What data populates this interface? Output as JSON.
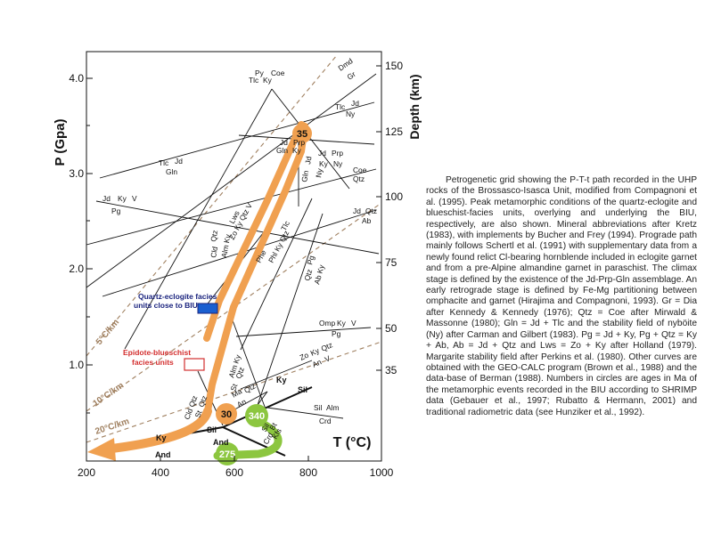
{
  "figure": {
    "type": "P-T phase diagram (petrogenetic grid)",
    "y_axis_label": "P (Gpa)",
    "y_ticks": [
      "4.0",
      "3.0",
      "2.0",
      "1.0"
    ],
    "x_axis_label": "T (°C)",
    "x_ticks": [
      "200",
      "400",
      "600",
      "800",
      "1000"
    ],
    "depth_axis_label": "Depth (km)",
    "depth_ticks": [
      "150",
      "125",
      "100",
      "75",
      "50",
      "35"
    ],
    "geotherms": [
      "5°C/km",
      "10°C/km",
      "20°C/km"
    ],
    "age_labels": [
      "35",
      "30",
      "340",
      "275"
    ],
    "facies_labels": {
      "quartz_eclogite": "Quartz-eclogite facies units close to BIU",
      "epidote_blueschist": "Epidote-blueschist facies units"
    },
    "colors": {
      "path": "#f0a050",
      "prealpine": "#8cc63f",
      "geotherm": "#a08060",
      "qe_box": "#1a5fd0",
      "qe_text": "#1a237e",
      "eb_text": "#d32f2f"
    },
    "reactions": {
      "dmd_gr": [
        "Dmd",
        "Gr"
      ],
      "py_coe_tlc_ky": [
        "Py",
        "Coe",
        "Tlc",
        "Ky"
      ],
      "tlc_jd_ny": [
        "Tlc",
        "Jd",
        "Ny"
      ],
      "tlc_jd_gln": [
        "Tlc",
        "Jd",
        "Gln"
      ],
      "jd_prp_gln_ky": [
        "Jd",
        "Prp",
        "Gln",
        "Ky"
      ],
      "jd_prp_ky_ny": [
        "Jd",
        "Prp",
        "Ky",
        "Ny"
      ],
      "gln_jd_ny": [
        "Gln",
        "Jd",
        "Ny"
      ],
      "coe_qtz": [
        "Coe",
        "Qtz"
      ],
      "jd_ky_v_pg": [
        "Jd",
        "Ky",
        "V",
        "Pg"
      ],
      "lws_zo_ky_qtz_v": [
        "Lws",
        "Zo Ky Qtz V"
      ],
      "phe_tlc_phl_ky_qtz": [
        "Phe",
        "Tlc",
        "Phl Ky Qtz"
      ],
      "jd_qtz_ab": [
        "Jd",
        "Qtz",
        "Ab"
      ],
      "cld_qtz_alm_ky": [
        "Cld",
        "Qtz",
        "Alm Ky"
      ],
      "qtz_pg_ab_ky": [
        "Qtz",
        "Pg",
        "Ab Ky"
      ],
      "omp_ky_v_pg": [
        "Omp",
        "Ky",
        "V",
        "Pg"
      ],
      "alm_ky_st_qtz": [
        "Alm Ky",
        "St",
        "Qtz"
      ],
      "zo_ky_qtz_an_v": [
        "Zo",
        "Ky",
        "Qtz",
        "An",
        "V"
      ],
      "cld_qtz_st_qtz": [
        "Cld Qtz",
        "St",
        "Qtz"
      ],
      "ma_qtz_an": [
        "Ma",
        "Qtz",
        "An"
      ],
      "ky_sil": [
        "Ky",
        "Sil"
      ],
      "sil_bt_crd_kfs": [
        "Sil",
        "Bt",
        "Crd",
        "Kfs"
      ],
      "sil_alm_crd": [
        "Sil",
        "Alm",
        "Crd"
      ],
      "and_labels": [
        "And",
        "And"
      ],
      "sil_labels": [
        "Sil"
      ],
      "ky_labels": [
        "Ky"
      ]
    }
  },
  "caption": "Petrogenetic grid showing the P-T-t path recorded in the UHP rocks of the Brossasco-Isasca Unit, modified from Compagnoni et al. (1995). Peak metamorphic conditions of the quartz-eclogite and blueschist-facies units, overlying and underlying the BIU, respectively, are also shown. Mineral abbreviations after Kretz (1983), with implements by Bucher and Frey (1994). Prograde path mainly follows Schertl et al. (1991) with supplementary data from a newly found relict Cl-bearing hornblende included in eclogite garnet and from a pre-Alpine almandine garnet in paraschist. The climax stage is defined by the existence of the Jd-Prp-Gln assemblage. An early retrograde stage is defined by Fe-Mg partitioning between omphacite and garnet (Hirajima and Compagnoni, 1993). Gr = Dia after Kennedy & Kennedy (1976); Qtz = Coe after Mirwald & Massonne (1980); Gln = Jd + Tlc and the stability field of nyböite (Ny) after Carman and Gilbert (1983). Pg = Jd + Ky, Pg + Qtz = Ky + Ab, Ab = Jd + Qtz and Lws = Zo + Ky after Holland (1979). Margarite stability field after Perkins et al. (1980). Other curves are obtained with the GEO-CALC program (Brown et al., 1988) and the data-base of Berman (1988). Numbers in circles are ages in Ma of the metamorphic events recorded in the BIU according to SHRIMP data (Gebauer et al., 1997; Rubatto & Hermann, 2001) and traditional radiometric data (see Hunziker et al., 1992)."
}
